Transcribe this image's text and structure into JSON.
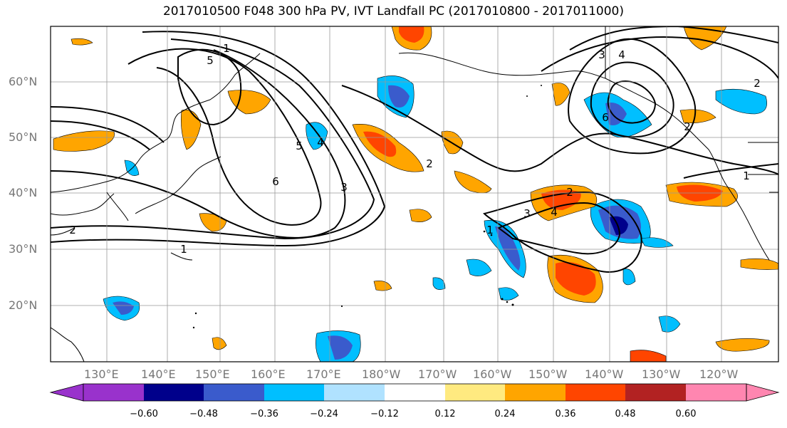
{
  "title": "2017010500 F048 300 hPa PV, IVT Landfall PC (2017010800 - 2017011000)",
  "lat_ticks": [
    "60°N",
    "50°N",
    "40°N",
    "30°N",
    "20°N"
  ],
  "lon_ticks": [
    "130°E",
    "140°E",
    "150°E",
    "160°E",
    "170°E",
    "180°W",
    "170°W",
    "160°W",
    "150°W",
    "140°W",
    "130°W",
    "120°W"
  ],
  "colorbar": {
    "ticks": [
      "−0.60",
      "−0.48",
      "−0.36",
      "−0.24",
      "−0.12",
      "0.12",
      "0.24",
      "0.36",
      "0.48",
      "0.60"
    ],
    "colors": [
      "#9932cc",
      "#00008b",
      "#3a5bcc",
      "#00bfff",
      "#b0e2ff",
      "#ffffff",
      "#ffea80",
      "#ffa500",
      "#ff4500",
      "#b22222",
      "#ff86b0"
    ]
  },
  "contour_labels": [
    "1",
    "2",
    "3",
    "4",
    "5",
    "6",
    "1",
    "2",
    "3",
    "4",
    "5",
    "6",
    "1",
    "2",
    "3",
    "4",
    "2",
    "1",
    "2"
  ],
  "colors": {
    "background": "#ffffff",
    "grid": "#999999",
    "coast": "#000000"
  }
}
